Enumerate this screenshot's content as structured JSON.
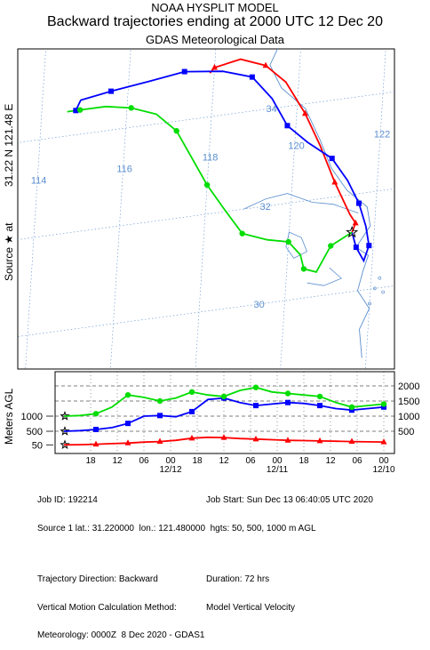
{
  "header": {
    "line1": "NOAA HYSPLIT MODEL",
    "line2": "Backward trajectories ending at 2000 UTC 12 Dec 20",
    "line3": "GDAS Meteorological Data"
  },
  "side_label": {
    "source": "Source ★ at",
    "coords": "31.22 N   121.48 E",
    "meters": "Meters AGL"
  },
  "colors": {
    "red": "#ff0000",
    "blue": "#0000ff",
    "green": "#00dd00",
    "grid": "#5b8fcf",
    "coast": "#5b8fcf"
  },
  "chart_data": {
    "type": "line",
    "map": {
      "lon_labels": [
        "114",
        "116",
        "118",
        "120",
        "122"
      ],
      "lat_labels": [
        "34",
        "32",
        "30"
      ],
      "source": {
        "lat": 31.22,
        "lon": 121.48
      },
      "series": [
        {
          "color": "red",
          "height_m": 50,
          "points": [
            [
              121.48,
              31.22
            ],
            [
              121.55,
              31.4
            ],
            [
              121.4,
              31.6
            ],
            [
              121.0,
              32.3
            ],
            [
              120.6,
              33.1
            ],
            [
              120.2,
              33.8
            ],
            [
              119.7,
              34.5
            ],
            [
              119.2,
              34.9
            ],
            [
              118.6,
              35.1
            ],
            [
              118.0,
              35.0
            ],
            [
              117.9,
              34.9
            ]
          ]
        },
        {
          "color": "blue",
          "height_m": 500,
          "points": [
            [
              121.48,
              31.22
            ],
            [
              121.6,
              30.9
            ],
            [
              121.8,
              30.6
            ],
            [
              121.9,
              30.9
            ],
            [
              121.8,
              31.3
            ],
            [
              121.6,
              31.8
            ],
            [
              121.3,
              32.3
            ],
            [
              120.9,
              32.8
            ],
            [
              120.3,
              33.2
            ],
            [
              119.8,
              33.6
            ],
            [
              119.4,
              34.2
            ],
            [
              118.9,
              34.7
            ],
            [
              118.2,
              34.9
            ],
            [
              117.3,
              35.0
            ],
            [
              116.5,
              34.9
            ],
            [
              115.6,
              34.8
            ],
            [
              114.9,
              34.7
            ],
            [
              114.8,
              34.5
            ]
          ]
        },
        {
          "color": "green",
          "height_m": 1000,
          "points": [
            [
              121.48,
              31.22
            ],
            [
              121.0,
              31.0
            ],
            [
              120.7,
              30.5
            ],
            [
              120.4,
              30.6
            ],
            [
              120.3,
              30.9
            ],
            [
              120.0,
              31.2
            ],
            [
              119.5,
              31.3
            ],
            [
              118.9,
              31.5
            ],
            [
              118.4,
              32.1
            ],
            [
              118.0,
              32.6
            ],
            [
              117.6,
              33.2
            ],
            [
              117.2,
              33.8
            ],
            [
              116.7,
              34.2
            ],
            [
              116.1,
              34.4
            ],
            [
              115.5,
              34.5
            ],
            [
              114.9,
              34.5
            ],
            [
              114.6,
              34.5
            ]
          ]
        }
      ]
    },
    "vertical": {
      "ylabel": "Meters AGL",
      "right_ticks": [
        "2000",
        "1500",
        "1000",
        "500"
      ],
      "left_ticks": [
        "1000",
        "500",
        "50"
      ],
      "x_ticks": [
        "18",
        "12",
        "06",
        "00",
        "18",
        "12",
        "06",
        "00",
        "18",
        "12",
        "06",
        "00"
      ],
      "date_labels": [
        "12/12",
        "12/11",
        "12/10"
      ],
      "x_range_hours": [
        0,
        72
      ],
      "series": [
        {
          "color": "red",
          "values": [
            50,
            55,
            70,
            90,
            110,
            140,
            160,
            200,
            270,
            300,
            290,
            260,
            240,
            220,
            200,
            190,
            180,
            170,
            160,
            150,
            145
          ]
        },
        {
          "color": "blue",
          "values": [
            500,
            520,
            560,
            620,
            760,
            1000,
            1020,
            980,
            1150,
            1550,
            1600,
            1450,
            1350,
            1400,
            1450,
            1420,
            1350,
            1250,
            1200,
            1250,
            1300
          ]
        },
        {
          "color": "green",
          "values": [
            1000,
            1020,
            1080,
            1300,
            1700,
            1620,
            1500,
            1600,
            1800,
            1700,
            1650,
            1850,
            1950,
            1800,
            1750,
            1700,
            1650,
            1450,
            1300,
            1350,
            1400
          ]
        }
      ]
    }
  },
  "footer": {
    "job_id": "Job ID: 192214",
    "job_start": "Job Start: Sun Dec 13 06:40:05 UTC 2020",
    "source_line": "Source 1 lat.: 31.220000  lon.: 121.480000  hgts: 50, 500, 1000 m AGL",
    "direction": "Trajectory Direction: Backward",
    "duration": "Duration: 72 hrs",
    "vertical_method": "Vertical Motion Calculation Method:",
    "vertical_method_value": "Model Vertical Velocity",
    "meteorology": "Meteorology: 0000Z  8 Dec 2020 - GDAS1"
  }
}
